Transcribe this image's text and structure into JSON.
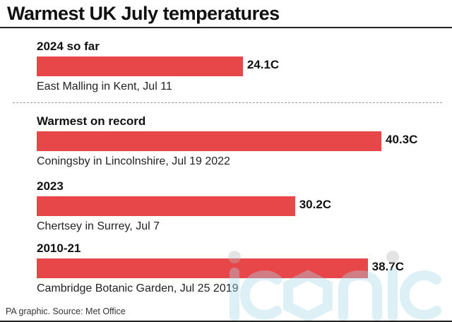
{
  "header": {
    "title": "Warmest UK July temperatures"
  },
  "footer": {
    "source": "PA graphic. Source: Met Office"
  },
  "watermark": {
    "text": "iconic",
    "color": "#a8d8e8"
  },
  "colors": {
    "bar": "#e8474a"
  },
  "chart_data": {
    "type": "bar",
    "orientation": "horizontal",
    "title": "Warmest UK July temperatures",
    "unit": "C",
    "groups": [
      {
        "label": "2024 so far",
        "value": 24.1,
        "value_label": "24.1C",
        "caption": "East Malling in Kent, Jul 11"
      },
      {
        "label": "Warmest on record",
        "value": 40.3,
        "value_label": "40.3C",
        "caption": "Coningsby in Lincolnshire, Jul 19 2022"
      },
      {
        "label": "2023",
        "value": 30.2,
        "value_label": "30.2C",
        "caption": "Chertsey in Surrey, Jul 7"
      },
      {
        "label": "2010-21",
        "value": 38.7,
        "value_label": "38.7C",
        "caption": "Cambridge Botanic Garden, Jul 25 2019"
      }
    ]
  }
}
